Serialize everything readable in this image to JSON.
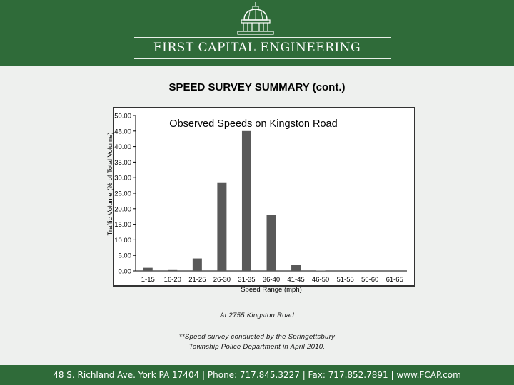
{
  "header": {
    "company_name": "FIRST CAPITAL ENGINEERING",
    "logo_icon": "capitol-dome-icon"
  },
  "page": {
    "title": "SPEED SURVEY SUMMARY (cont.)",
    "subtitle": "At 2755 Kingston Road",
    "note_line1": "**Speed survey conducted by the Springettsbury",
    "note_line2": "Township Police Department in April 2010."
  },
  "footer": {
    "text": "48 S. Richland Ave. York PA 17404 | Phone: 717.845.3227 | Fax: 717.852.7891 | www.FCAP.com"
  },
  "chart_data": {
    "type": "bar",
    "title": "Observed Speeds on Kingston Road",
    "xlabel": "Speed Range (mph)",
    "ylabel": "Traffic Volume (% of Total Volume)",
    "categories": [
      "1-15",
      "16-20",
      "21-25",
      "26-30",
      "31-35",
      "36-40",
      "41-45",
      "46-50",
      "51-55",
      "56-60",
      "61-65"
    ],
    "values": [
      1.0,
      0.5,
      4.0,
      28.5,
      45.0,
      18.0,
      2.0,
      0.1,
      0.0,
      0.0,
      0.0
    ],
    "ylim": [
      0,
      50
    ],
    "yticks": [
      "0.00",
      "5.00",
      "10.00",
      "15.00",
      "20.00",
      "25.00",
      "30.00",
      "35.00",
      "40.00",
      "45.00",
      "50.00"
    ],
    "bar_color": "#595959",
    "grid": false,
    "legend": "none"
  }
}
